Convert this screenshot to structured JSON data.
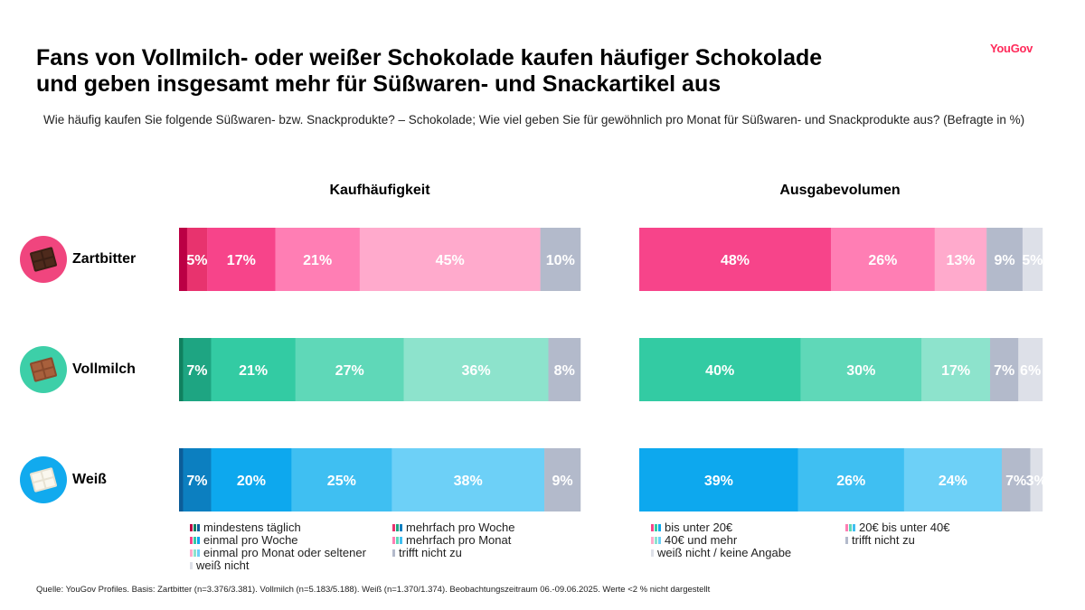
{
  "header": {
    "title_line1": "Fans von Vollmilch- oder weißer Schokolade kaufen häufiger Schokolade",
    "title_line2": "und geben insgesamt mehr für Süßwaren- und Snackartikel aus",
    "logo": "YouGov",
    "subtitle": "Wie häufig kaufen Sie folgende Süßwaren- bzw. Snackprodukte? – Schokolade; Wie viel geben Sie für gewöhnlich pro Monat für Süßwaren- und Snackprodukte aus? (Befragte in %)"
  },
  "rows": [
    {
      "label": "Zartbitter",
      "icon": "dark-chocolate-icon",
      "icon_bg": "#f0457e"
    },
    {
      "label": "Vollmilch",
      "icon": "milk-chocolate-icon",
      "icon_bg": "#3dcfa8"
    },
    {
      "label": "Weiß",
      "icon": "white-chocolate-icon",
      "icon_bg": "#11aaee"
    }
  ],
  "chart_data": [
    {
      "type": "bar",
      "orientation": "horizontal-stacked-100",
      "title": "Kaufhäufigkeit",
      "categories": [
        "Zartbitter",
        "Vollmilch",
        "Weiß"
      ],
      "series": [
        {
          "name": "mindestens täglich",
          "values": [
            2,
            1,
            1
          ],
          "labels": [
            "",
            "",
            ""
          ]
        },
        {
          "name": "mehrfach pro Woche",
          "values": [
            5,
            7,
            7
          ],
          "labels": [
            "5%",
            "7%",
            "7%"
          ]
        },
        {
          "name": "einmal pro Woche",
          "values": [
            17,
            21,
            20
          ],
          "labels": [
            "17%",
            "21%",
            "20%"
          ]
        },
        {
          "name": "mehrfach pro Monat",
          "values": [
            21,
            27,
            25
          ],
          "labels": [
            "21%",
            "27%",
            "25%"
          ]
        },
        {
          "name": "einmal pro Monat oder seltener",
          "values": [
            45,
            36,
            38
          ],
          "labels": [
            "45%",
            "36%",
            "38%"
          ]
        },
        {
          "name": "trifft nicht zu",
          "values": [
            10,
            8,
            9
          ],
          "labels": [
            "10%",
            "8%",
            "9%"
          ]
        },
        {
          "name": "weiß nicht",
          "values": [
            0,
            0,
            0
          ],
          "labels": [
            "",
            "",
            ""
          ]
        }
      ],
      "colors": [
        [
          "#bb0044",
          "#e8336e",
          "#f7448a",
          "#ff7eb4",
          "#ffaacc",
          "#b3bacb",
          "#dde0e8"
        ],
        [
          "#10805f",
          "#1ea582",
          "#33cba3",
          "#5fd8b8",
          "#8de3cc",
          "#b3bacb",
          "#dde0e8"
        ],
        [
          "#0c5d99",
          "#0c7fc0",
          "#0da8ee",
          "#3fbff2",
          "#6dd0f7",
          "#b3bacb",
          "#dde0e8"
        ]
      ]
    },
    {
      "type": "bar",
      "orientation": "horizontal-stacked-100",
      "title": "Ausgabevolumen",
      "categories": [
        "Zartbitter",
        "Vollmilch",
        "Weiß"
      ],
      "series": [
        {
          "name": "bis unter 20€",
          "values": [
            48,
            40,
            39
          ],
          "labels": [
            "48%",
            "40%",
            "39%"
          ]
        },
        {
          "name": "20€ bis unter 40€",
          "values": [
            26,
            30,
            26
          ],
          "labels": [
            "26%",
            "30%",
            "26%"
          ]
        },
        {
          "name": "40€ und mehr",
          "values": [
            13,
            17,
            24
          ],
          "labels": [
            "13%",
            "17%",
            "24%"
          ]
        },
        {
          "name": "trifft nicht zu",
          "values": [
            9,
            7,
            7
          ],
          "labels": [
            "9%",
            "7%",
            "7%"
          ]
        },
        {
          "name": "weiß nicht / keine Angabe",
          "values": [
            5,
            6,
            3
          ],
          "labels": [
            "5%",
            "6%",
            "3%"
          ]
        }
      ],
      "colors": [
        [
          "#f7448a",
          "#ff7eb4",
          "#ffaacc",
          "#b3bacb",
          "#dde0e8"
        ],
        [
          "#33cba3",
          "#5fd8b8",
          "#8de3cc",
          "#b3bacb",
          "#dde0e8"
        ],
        [
          "#0da8ee",
          "#3fbff2",
          "#6dd0f7",
          "#b3bacb",
          "#dde0e8"
        ]
      ]
    }
  ],
  "legend_left": [
    {
      "label": "mindestens täglich",
      "sw": [
        "#bb0044",
        "#10805f",
        "#0c5d99"
      ]
    },
    {
      "label": "mehrfach pro Woche",
      "sw": [
        "#e8336e",
        "#1ea582",
        "#0c7fc0"
      ]
    },
    {
      "label": "einmal pro Woche",
      "sw": [
        "#f7448a",
        "#33cba3",
        "#0da8ee"
      ]
    },
    {
      "label": "mehrfach pro Monat",
      "sw": [
        "#ff7eb4",
        "#5fd8b8",
        "#3fbff2"
      ]
    },
    {
      "label": "einmal pro Monat oder seltener",
      "sw": [
        "#ffaacc",
        "#8de3cc",
        "#6dd0f7"
      ]
    },
    {
      "label": "trifft nicht zu",
      "sw": [
        "#b3bacb"
      ]
    },
    {
      "label": "weiß nicht",
      "sw": [
        "#dde0e8"
      ]
    }
  ],
  "legend_right": [
    {
      "label": "bis unter 20€",
      "sw": [
        "#f7448a",
        "#33cba3",
        "#0da8ee"
      ]
    },
    {
      "label": "20€ bis unter 40€",
      "sw": [
        "#ff7eb4",
        "#5fd8b8",
        "#3fbff2"
      ]
    },
    {
      "label": "40€ und mehr",
      "sw": [
        "#ffaacc",
        "#8de3cc",
        "#6dd0f7"
      ]
    },
    {
      "label": "trifft nicht zu",
      "sw": [
        "#b3bacb"
      ]
    },
    {
      "label": "weiß nicht / keine Angabe",
      "sw": [
        "#dde0e8"
      ]
    }
  ],
  "source": "Quelle: YouGov Profiles. Basis: Zartbitter (n=3.376/3.381). Vollmilch (n=5.183/5.188). Weiß (n=1.370/1.374). Beobachtungszeitraum 06.-09.06.2025. Werte <2 % nicht dargestellt"
}
